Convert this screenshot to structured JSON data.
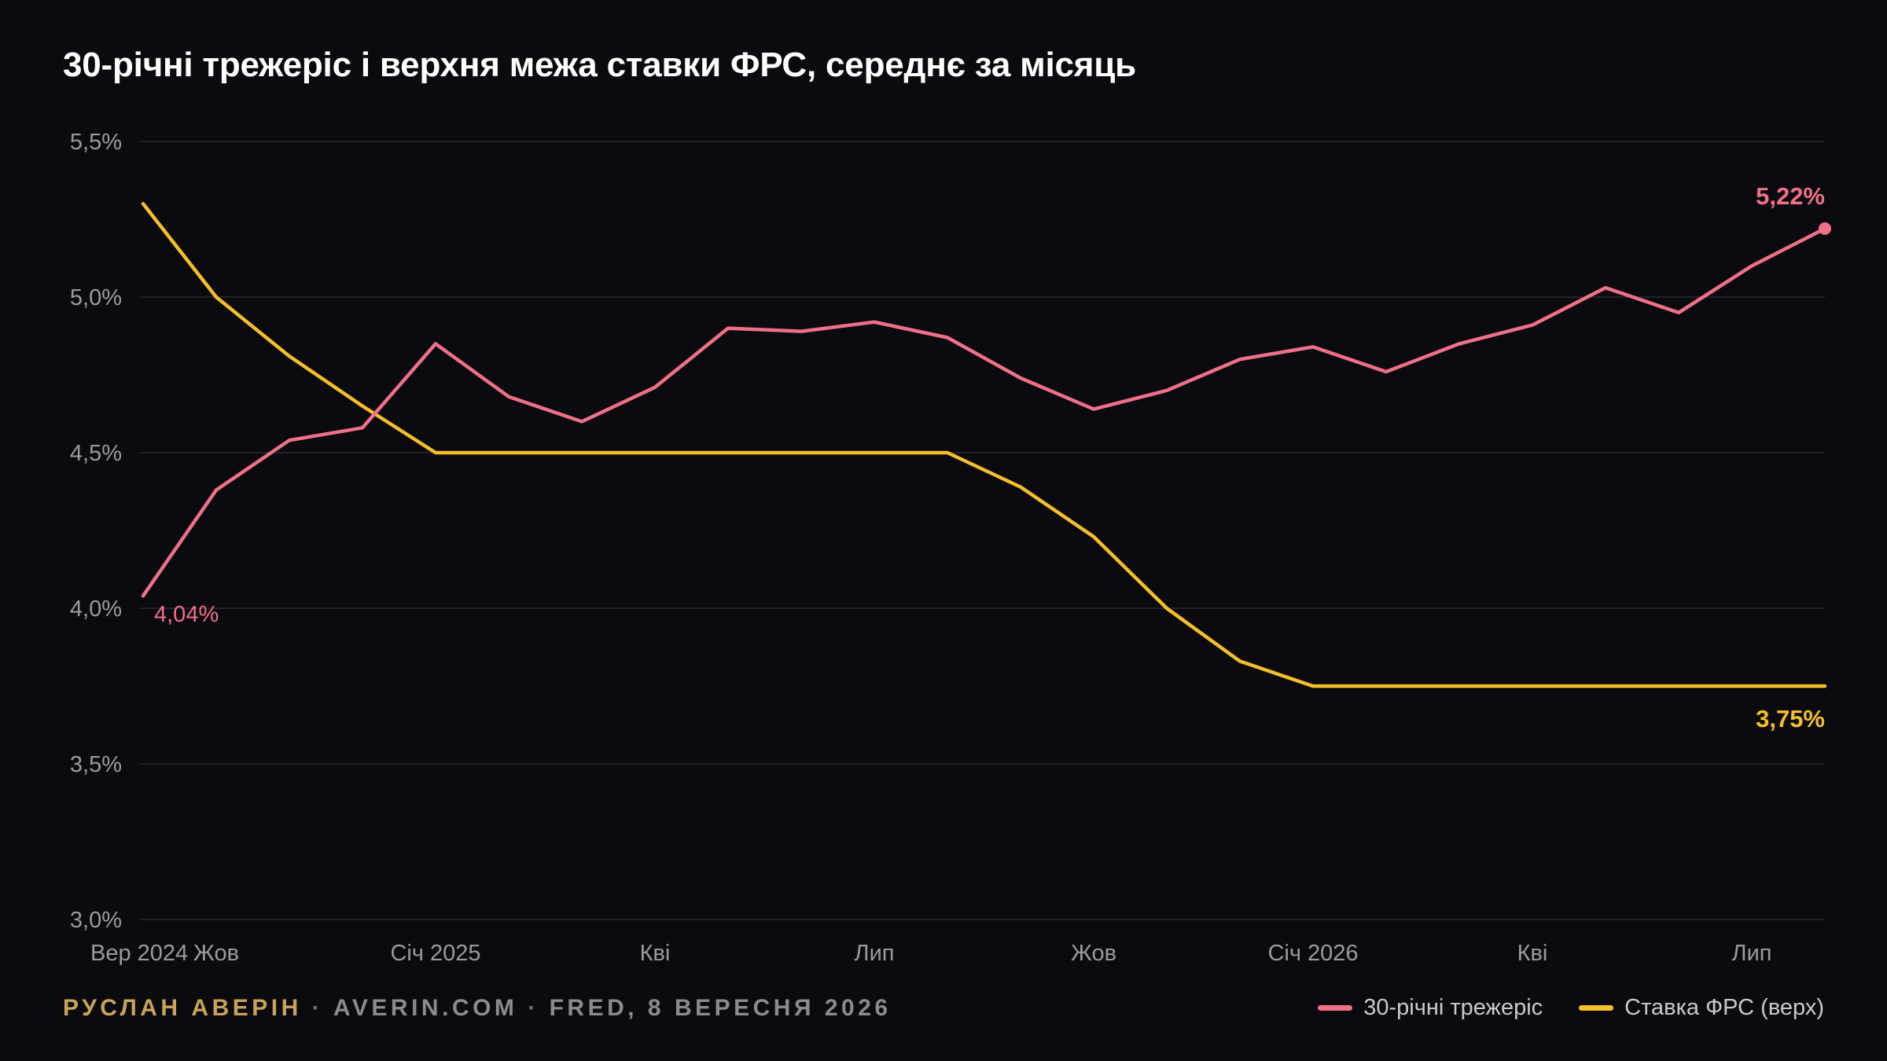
{
  "title": "30-річні трежеріс і верхня межа ставки ФРС, середнє за місяць",
  "footer": {
    "author": "РУСЛАН АВЕРІН",
    "separator": "·",
    "site": "AVERIN.COM",
    "source": "FRED, 8 ВЕРЕСНЯ 2026"
  },
  "colors": {
    "background": "#0b0a0f",
    "treasury": "#f0708a",
    "fed": "#f5bf2a",
    "grid": "#2a2930",
    "tick": "#9a9aa0"
  },
  "chart_data": {
    "type": "line",
    "title": "30-річні трежеріс і верхня межа ставки ФРС, середнє за місяць",
    "xlabel": "",
    "ylabel": "",
    "ylim": [
      3.0,
      5.5
    ],
    "grid": true,
    "legend_position": "bottom-right",
    "y_ticks": [
      3.0,
      3.5,
      4.0,
      4.5,
      5.0,
      5.5
    ],
    "y_tick_labels": [
      "3,0%",
      "3,5%",
      "4,0%",
      "4,5%",
      "5,0%",
      "5,5%"
    ],
    "x_tick_indices": [
      0,
      1,
      4,
      7,
      10,
      13,
      16,
      19,
      22
    ],
    "x_tick_labels": [
      "Вер 2024",
      "Жов",
      "Січ 2025",
      "Кві",
      "Лип",
      "Жов",
      "Січ 2026",
      "Кві",
      "Лип"
    ],
    "categories": [
      "2024-09",
      "2024-10",
      "2024-11",
      "2024-12",
      "2025-01",
      "2025-02",
      "2025-03",
      "2025-04",
      "2025-05",
      "2025-06",
      "2025-07",
      "2025-08",
      "2025-09",
      "2025-10",
      "2025-11",
      "2025-12",
      "2026-01",
      "2026-02",
      "2026-03",
      "2026-04",
      "2026-05",
      "2026-06",
      "2026-07",
      "2026-08"
    ],
    "series": [
      {
        "name": "30-річні трежеріс",
        "values": [
          4.04,
          4.38,
          4.54,
          4.58,
          4.85,
          4.68,
          4.6,
          4.71,
          4.9,
          4.89,
          4.92,
          4.87,
          4.74,
          4.64,
          4.7,
          4.8,
          4.84,
          4.76,
          4.85,
          4.91,
          5.03,
          4.95,
          5.1,
          5.22
        ],
        "start_label": "4,04%",
        "end_label": "5,22%"
      },
      {
        "name": "Ставка ФРС (верх)",
        "values": [
          5.3,
          5.0,
          4.81,
          4.65,
          4.5,
          4.5,
          4.5,
          4.5,
          4.5,
          4.5,
          4.5,
          4.5,
          4.39,
          4.23,
          4.0,
          3.83,
          3.75,
          3.75,
          3.75,
          3.75,
          3.75,
          3.75,
          3.75,
          3.75
        ],
        "end_label": "3,75%"
      }
    ]
  }
}
